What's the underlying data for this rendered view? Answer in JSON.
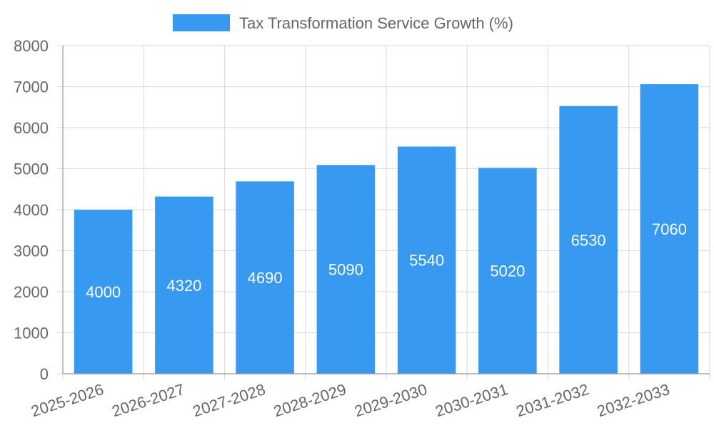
{
  "chart_data": {
    "type": "bar",
    "categories": [
      "2025-2026",
      "2026-2027",
      "2027-2028",
      "2028-2029",
      "2029-2030",
      "2030-2031",
      "2031-2032",
      "2032-2033"
    ],
    "series": [
      {
        "name": "Tax Transformation Service Growth (%)",
        "values": [
          4000,
          4320,
          4690,
          5090,
          5540,
          5020,
          6530,
          7060
        ],
        "color": "#3799f0"
      }
    ],
    "ylim": [
      0,
      8000
    ],
    "yticks": [
      0,
      1000,
      2000,
      3000,
      4000,
      5000,
      6000,
      7000,
      8000
    ],
    "grid": true,
    "legend_position": "top",
    "data_labels": true
  }
}
